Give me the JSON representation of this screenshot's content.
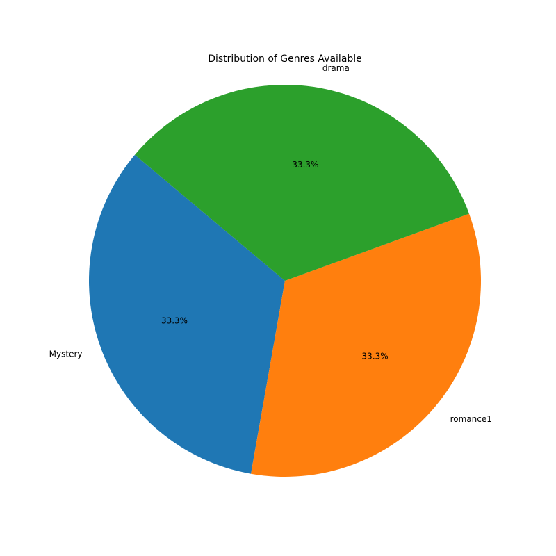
{
  "chart_data": {
    "type": "pie",
    "title": "Distribution of Genres Available",
    "slices": [
      {
        "label": "Mystery",
        "value": 1,
        "percent_label": "33.3%",
        "color": "#1f77b4"
      },
      {
        "label": "romance1",
        "value": 1,
        "percent_label": "33.3%",
        "color": "#ff7f0e"
      },
      {
        "label": "drama",
        "value": 1,
        "percent_label": "33.3%",
        "color": "#2ca02c"
      }
    ],
    "start_angle_deg": 140,
    "direction": "counterclockwise"
  }
}
